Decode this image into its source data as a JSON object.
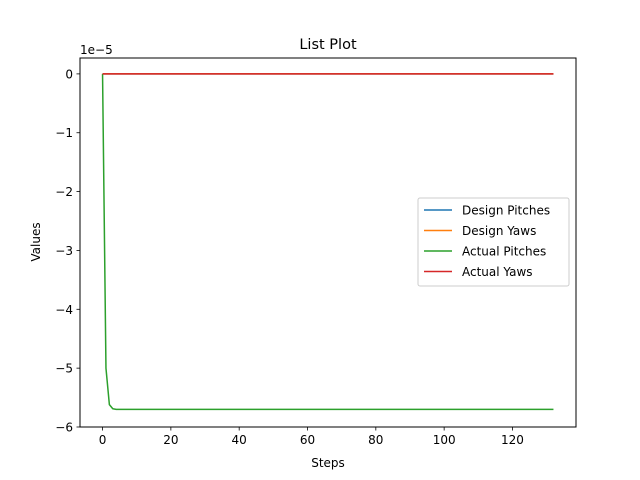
{
  "chart_data": {
    "type": "line",
    "title": "List Plot",
    "xlabel": "Steps",
    "ylabel": "Values",
    "scale_label": "1e−5",
    "xlim": [
      -6.6,
      138.6
    ],
    "ylim": [
      -6.0,
      0.27
    ],
    "x_ticks": [
      0,
      20,
      40,
      60,
      80,
      100,
      120
    ],
    "x_tick_labels": [
      "0",
      "20",
      "40",
      "60",
      "80",
      "100",
      "120"
    ],
    "y_ticks": [
      0,
      -1,
      -2,
      -3,
      -4,
      -5,
      -6
    ],
    "y_tick_labels": [
      "0",
      "−1",
      "−2",
      "−3",
      "−4",
      "−5",
      "−6"
    ],
    "grid": false,
    "legend_position": "center-right",
    "series": [
      {
        "name": "Design Pitches",
        "color": "#1f77b4",
        "x": [
          0,
          132
        ],
        "y": [
          0,
          0
        ]
      },
      {
        "name": "Design Yaws",
        "color": "#ff7f0e",
        "x": [
          0,
          132
        ],
        "y": [
          0,
          0
        ]
      },
      {
        "name": "Actual Pitches",
        "color": "#2ca02c",
        "x": [
          0,
          1,
          2,
          3,
          4,
          6,
          10,
          20,
          40,
          60,
          80,
          100,
          120,
          132
        ],
        "y": [
          0,
          -5.0,
          -5.62,
          -5.69,
          -5.7,
          -5.7,
          -5.7,
          -5.7,
          -5.7,
          -5.7,
          -5.7,
          -5.7,
          -5.7,
          -5.7
        ]
      },
      {
        "name": "Actual Yaws",
        "color": "#d62728",
        "x": [
          0,
          132
        ],
        "y": [
          0,
          0
        ]
      }
    ]
  }
}
